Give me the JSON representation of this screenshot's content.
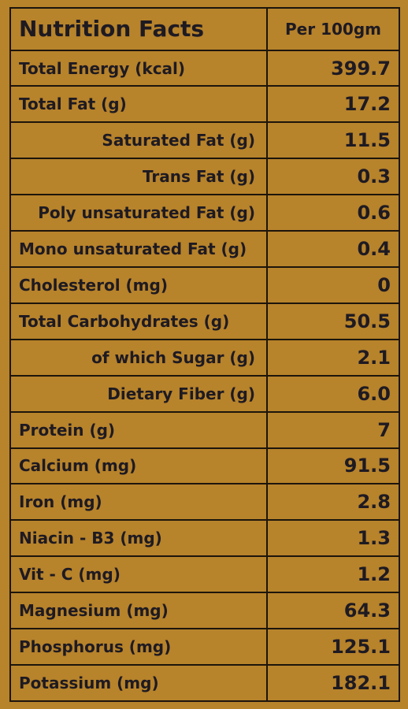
{
  "header": {
    "title": "Nutrition Facts",
    "column_label": "Per 100gm"
  },
  "rows": [
    {
      "label": "Total Energy (kcal)",
      "value": "399.7",
      "indent": false
    },
    {
      "label": "Total Fat (g)",
      "value": "17.2",
      "indent": false
    },
    {
      "label": "Saturated Fat (g)",
      "value": "11.5",
      "indent": true
    },
    {
      "label": "Trans Fat (g)",
      "value": "0.3",
      "indent": true
    },
    {
      "label": "Poly unsaturated Fat (g)",
      "value": "0.6",
      "indent": true
    },
    {
      "label": "Mono unsaturated Fat (g)",
      "value": "0.4",
      "indent": false
    },
    {
      "label": "Cholesterol (mg)",
      "value": "0",
      "indent": false
    },
    {
      "label": "Total Carbohydrates (g)",
      "value": "50.5",
      "indent": false
    },
    {
      "label": "of which Sugar (g)",
      "value": "2.1",
      "indent": true
    },
    {
      "label": "Dietary Fiber (g)",
      "value": "6.0",
      "indent": true
    },
    {
      "label": "Protein (g)",
      "value": "7",
      "indent": false
    },
    {
      "label": "Calcium (mg)",
      "value": "91.5",
      "indent": false
    },
    {
      "label": "Iron (mg)",
      "value": "2.8",
      "indent": false
    },
    {
      "label": "Niacin - B3 (mg)",
      "value": "1.3",
      "indent": false
    },
    {
      "label": "Vit - C (mg)",
      "value": "1.2",
      "indent": false
    },
    {
      "label": "Magnesium (mg)",
      "value": "64.3",
      "indent": false
    },
    {
      "label": "Phosphorus (mg)",
      "value": "125.1",
      "indent": false
    },
    {
      "label": "Potassium (mg)",
      "value": "182.1",
      "indent": false
    }
  ]
}
